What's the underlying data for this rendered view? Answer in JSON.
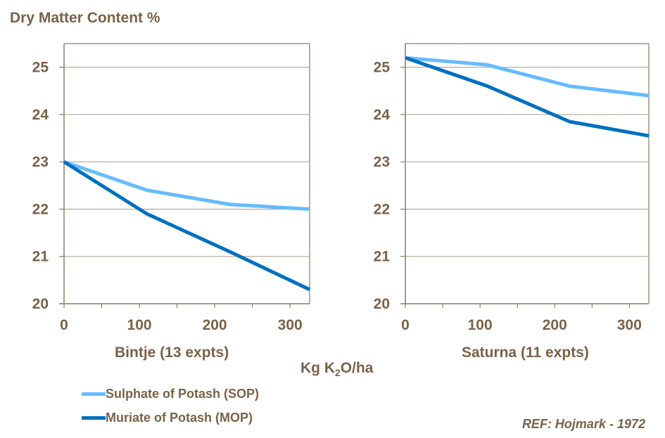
{
  "chart_data": [
    {
      "type": "line",
      "title": "Bintje (13 expts)",
      "ylabel": "Dry Matter Content %",
      "xlabel": "Kg K2O/ha",
      "xlim": [
        0,
        326
      ],
      "ylim": [
        20,
        25.5
      ],
      "xticks": [
        "0",
        "100",
        "200",
        "300"
      ],
      "yticks": [
        "20",
        "21",
        "22",
        "23",
        "24",
        "25"
      ],
      "grid": "horizontal",
      "series": [
        {
          "name": "Sulphate of Potash (SOP)",
          "color": "#66bbff",
          "x": [
            0,
            110,
            220,
            326
          ],
          "y": [
            23.0,
            22.4,
            22.1,
            22.0
          ]
        },
        {
          "name": "Muriate of Potash (MOP)",
          "color": "#0070c0",
          "x": [
            0,
            110,
            220,
            326
          ],
          "y": [
            23.0,
            21.9,
            21.1,
            20.3
          ]
        }
      ]
    },
    {
      "type": "line",
      "title": "Saturna (11 expts)",
      "xlim": [
        0,
        326
      ],
      "ylim": [
        20,
        25.5
      ],
      "xticks": [
        "0",
        "100",
        "200",
        "300"
      ],
      "yticks": [
        "20",
        "21",
        "22",
        "23",
        "24",
        "25"
      ],
      "grid": "horizontal",
      "series": [
        {
          "name": "Sulphate of Potash (SOP)",
          "color": "#66bbff",
          "x": [
            0,
            110,
            220,
            326
          ],
          "y": [
            25.2,
            25.05,
            24.6,
            24.4
          ]
        },
        {
          "name": "Muriate of Potash (MOP)",
          "color": "#0070c0",
          "x": [
            0,
            110,
            220,
            326
          ],
          "y": [
            25.2,
            24.6,
            23.85,
            23.55
          ]
        }
      ]
    }
  ],
  "labels": {
    "y_title": "Dry Matter Content %",
    "x_unit_pre": "Kg K",
    "x_unit_sub": "2",
    "x_unit_post": "O/ha",
    "reference": "REF: Hojmark - 1972"
  },
  "legend": [
    {
      "label": "Sulphate of Potash (SOP)",
      "color": "#66bbff"
    },
    {
      "label": "Muriate of Potash (MOP)",
      "color": "#0070c0"
    }
  ]
}
